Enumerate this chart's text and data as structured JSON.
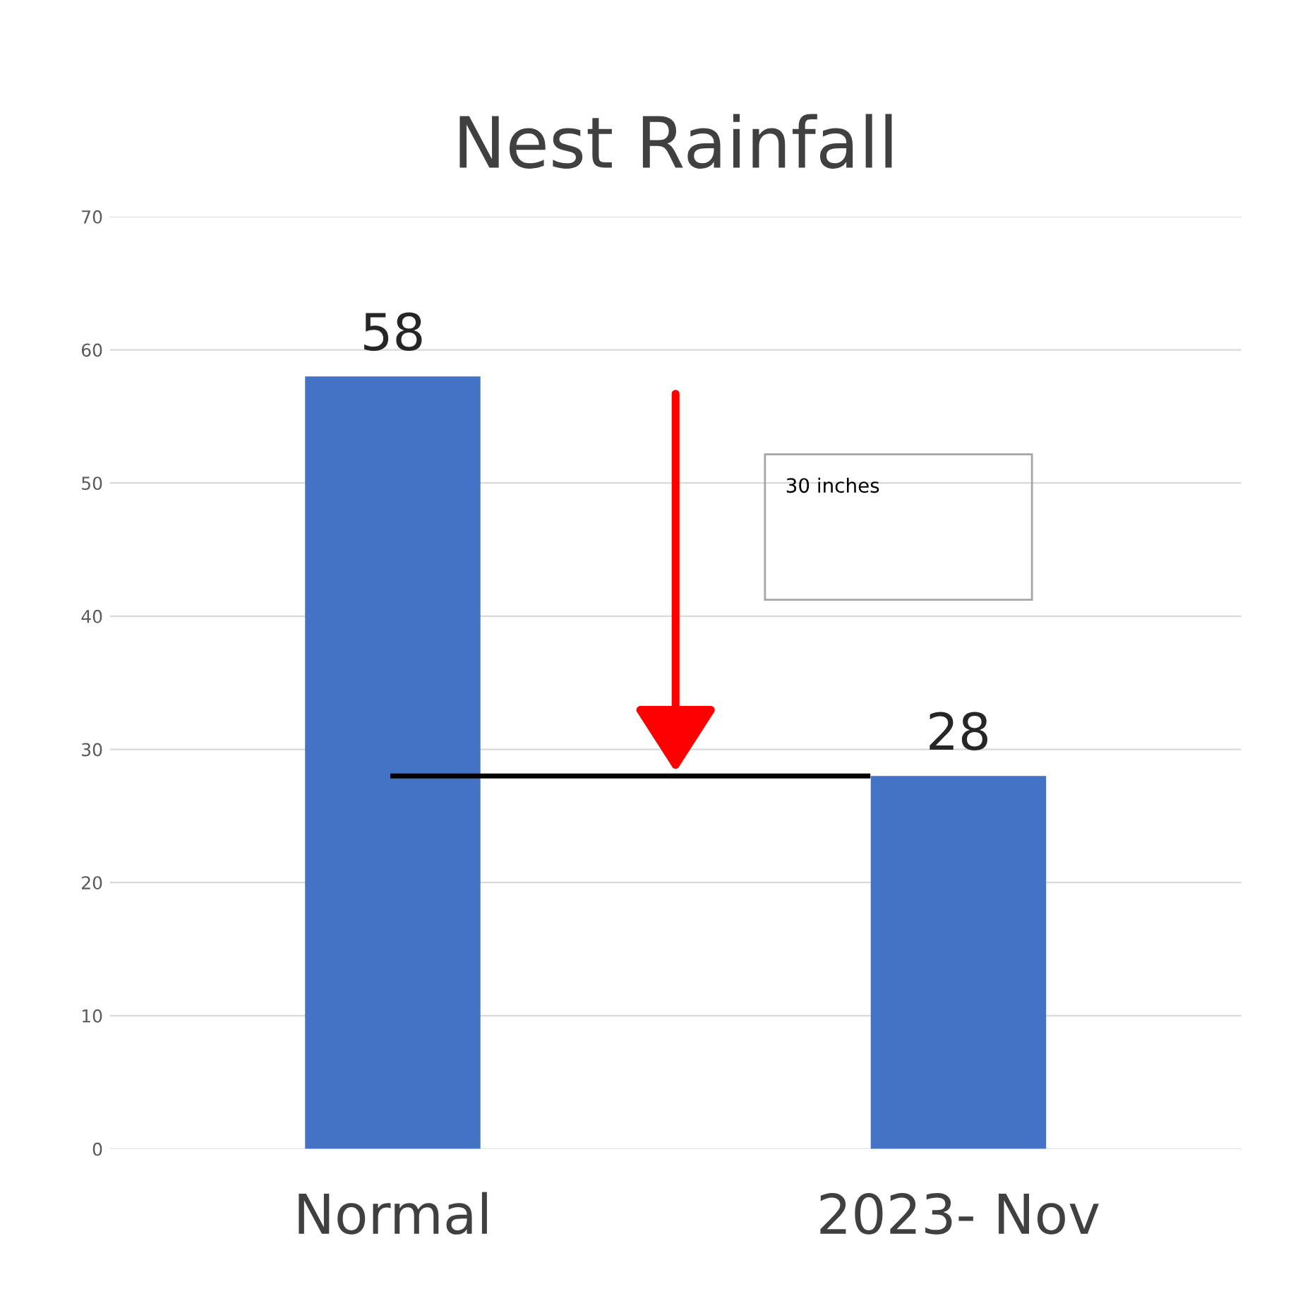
{
  "chart_data": {
    "type": "bar",
    "title": "Nest Rainfall",
    "categories": [
      "Normal",
      "2023- Nov"
    ],
    "values": [
      58,
      28
    ],
    "color": "#4472c4",
    "ylim": [
      0,
      70
    ],
    "yticks": [
      0,
      10,
      20,
      30,
      40,
      50,
      60,
      70
    ],
    "grid": "y",
    "data_labels": true,
    "ref_lines": [
      {
        "axis": "y",
        "value": 28,
        "label": null,
        "color": "#000000"
      }
    ],
    "annotations": [
      "30 inches"
    ]
  }
}
